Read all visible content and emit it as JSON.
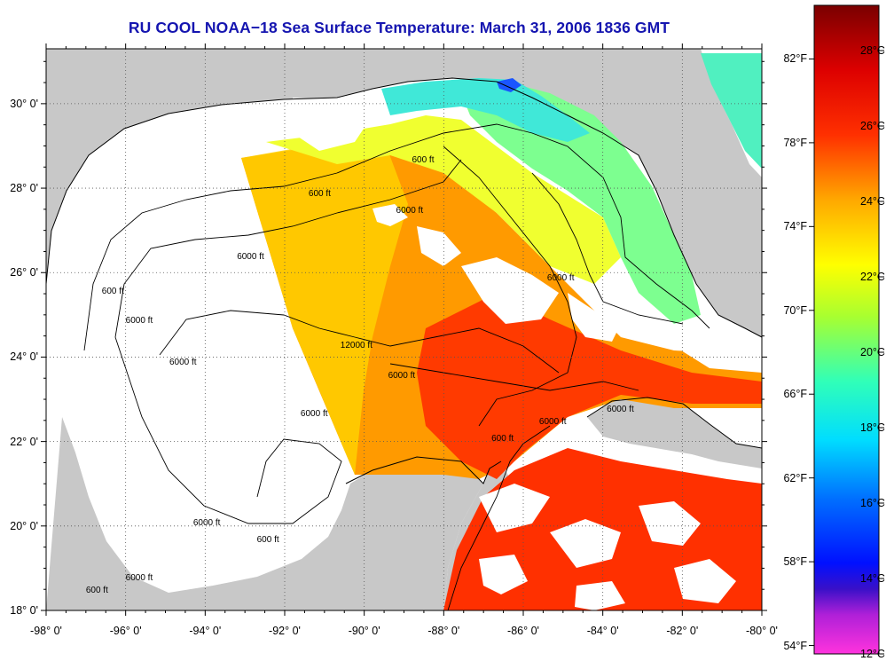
{
  "title": "RU COOL  NOAA−18  Sea Surface Temperature:  March 31, 2006 1836 GMT",
  "map": {
    "lon_range": [
      -98,
      -80
    ],
    "lat_range": [
      18,
      31.3
    ],
    "longitude_labels": [
      "-98° 0'",
      "-96° 0'",
      "-94° 0'",
      "-92° 0'",
      "-90° 0'",
      "-88° 0'",
      "-86° 0'",
      "-84° 0'",
      "-82° 0'",
      "-80° 0'"
    ],
    "latitude_labels": [
      "30° 0'",
      "28° 0'",
      "26° 0'",
      "24° 0'",
      "22° 0'",
      "20° 0'",
      "18° 0'"
    ],
    "contour_labels": [
      "600 ft",
      "600 ft",
      "6000 ft",
      "6000 ft",
      "6000 ft",
      "12000 ft",
      "6000 ft",
      "6000 ft",
      "600 ft",
      "6000 ft",
      "6000 ft",
      "6000 ft",
      "600 ft",
      "6000 ft",
      "600 ft",
      "6000 ft",
      "6000 ft",
      "600 ft"
    ],
    "colors": {
      "land": "#c8c8c8",
      "no_data": "#ffffff",
      "grid": "#555555",
      "contour": "#000000"
    }
  },
  "colorbar": {
    "celsius_labels": [
      "28°C",
      "26°C",
      "24°C",
      "22°C",
      "20°C",
      "18°C",
      "16°C",
      "14°C",
      "12°C"
    ],
    "fahrenheit_labels": [
      "82°F",
      "78°F",
      "74°F",
      "70°F",
      "66°F",
      "62°F",
      "58°F",
      "54°F"
    ],
    "range_c": [
      12,
      29.2
    ],
    "colors": [
      "#ff33dd",
      "#9a1ed0",
      "#0018e8",
      "#0090ff",
      "#00f0ff",
      "#3cffb0",
      "#aaff2a",
      "#ffff00",
      "#ff9000",
      "#ff2000",
      "#cc0000",
      "#7a0000"
    ]
  }
}
